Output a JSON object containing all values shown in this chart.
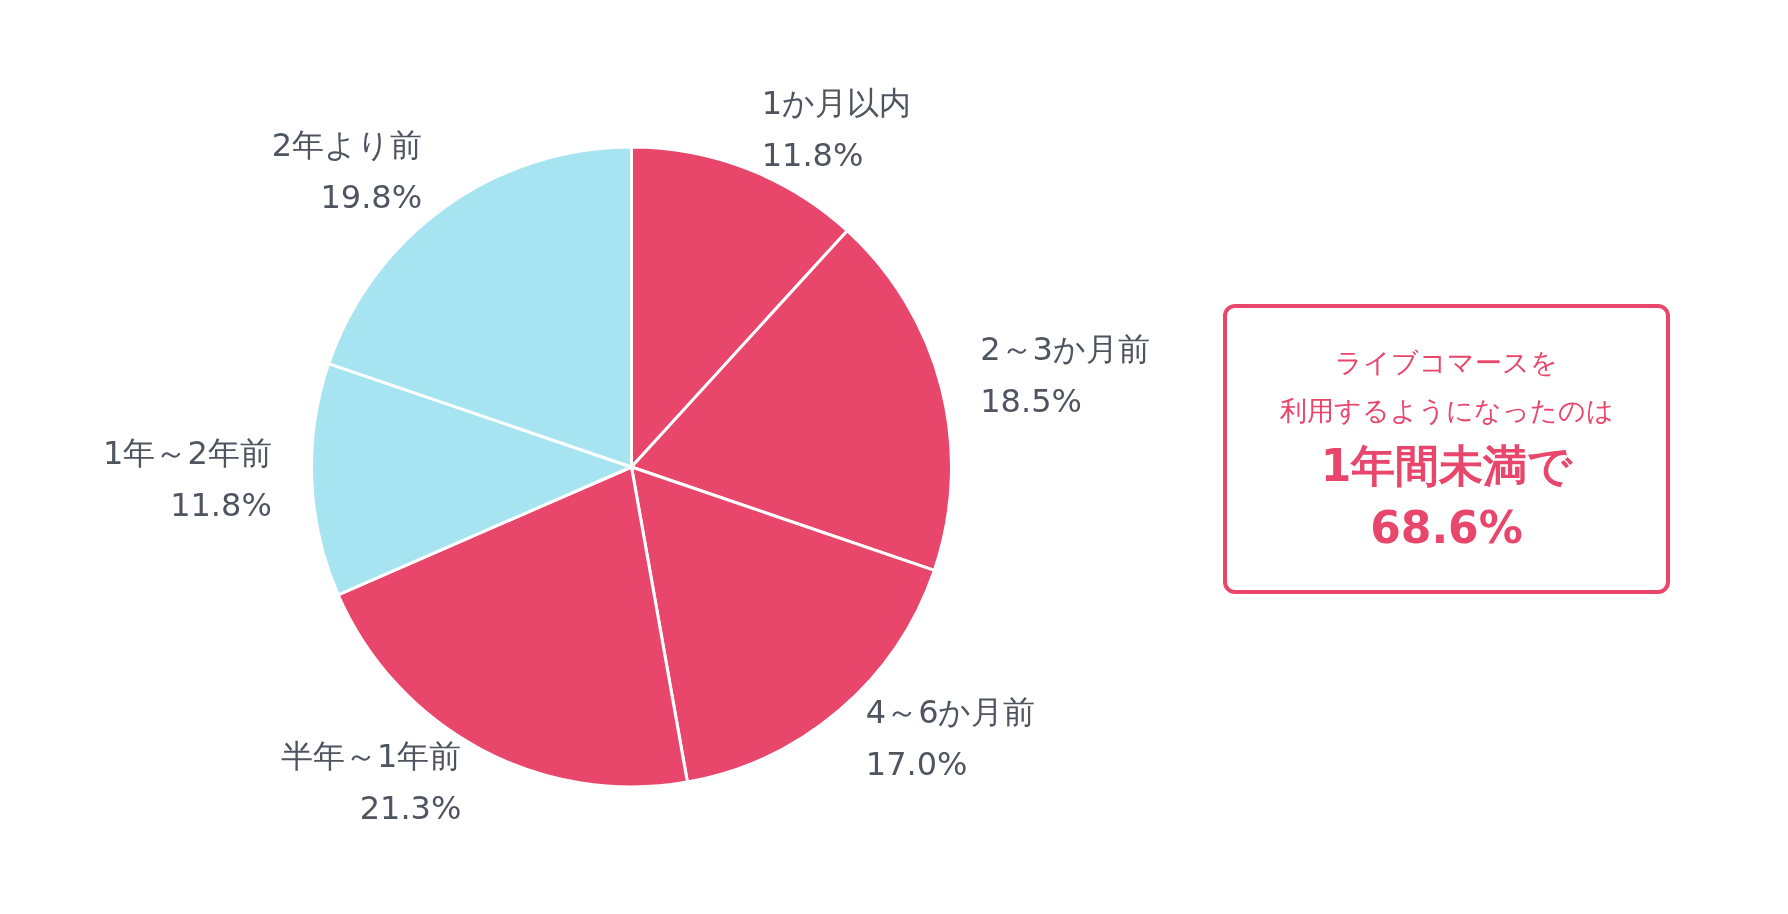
{
  "chart_data": {
    "type": "pie",
    "categories": [
      "1か月以内",
      "2～3か月前",
      "4～6か月前",
      "半年～1年前",
      "1年～2年前",
      "2年より前"
    ],
    "values": [
      11.8,
      18.5,
      17.0,
      21.3,
      11.8,
      19.8
    ],
    "colors": [
      "#e8466b",
      "#e8466b",
      "#e8466b",
      "#e8466b",
      "#a6e4f2",
      "#a6e4f2"
    ],
    "value_labels": [
      "11.8%",
      "18.5%",
      "17.0%",
      "21.3%",
      "11.8%",
      "19.8%"
    ],
    "legend": false,
    "annotations": [
      "ライブコマースを",
      "利用するようになったのは",
      "1年間未満で",
      "68.6%"
    ]
  }
}
